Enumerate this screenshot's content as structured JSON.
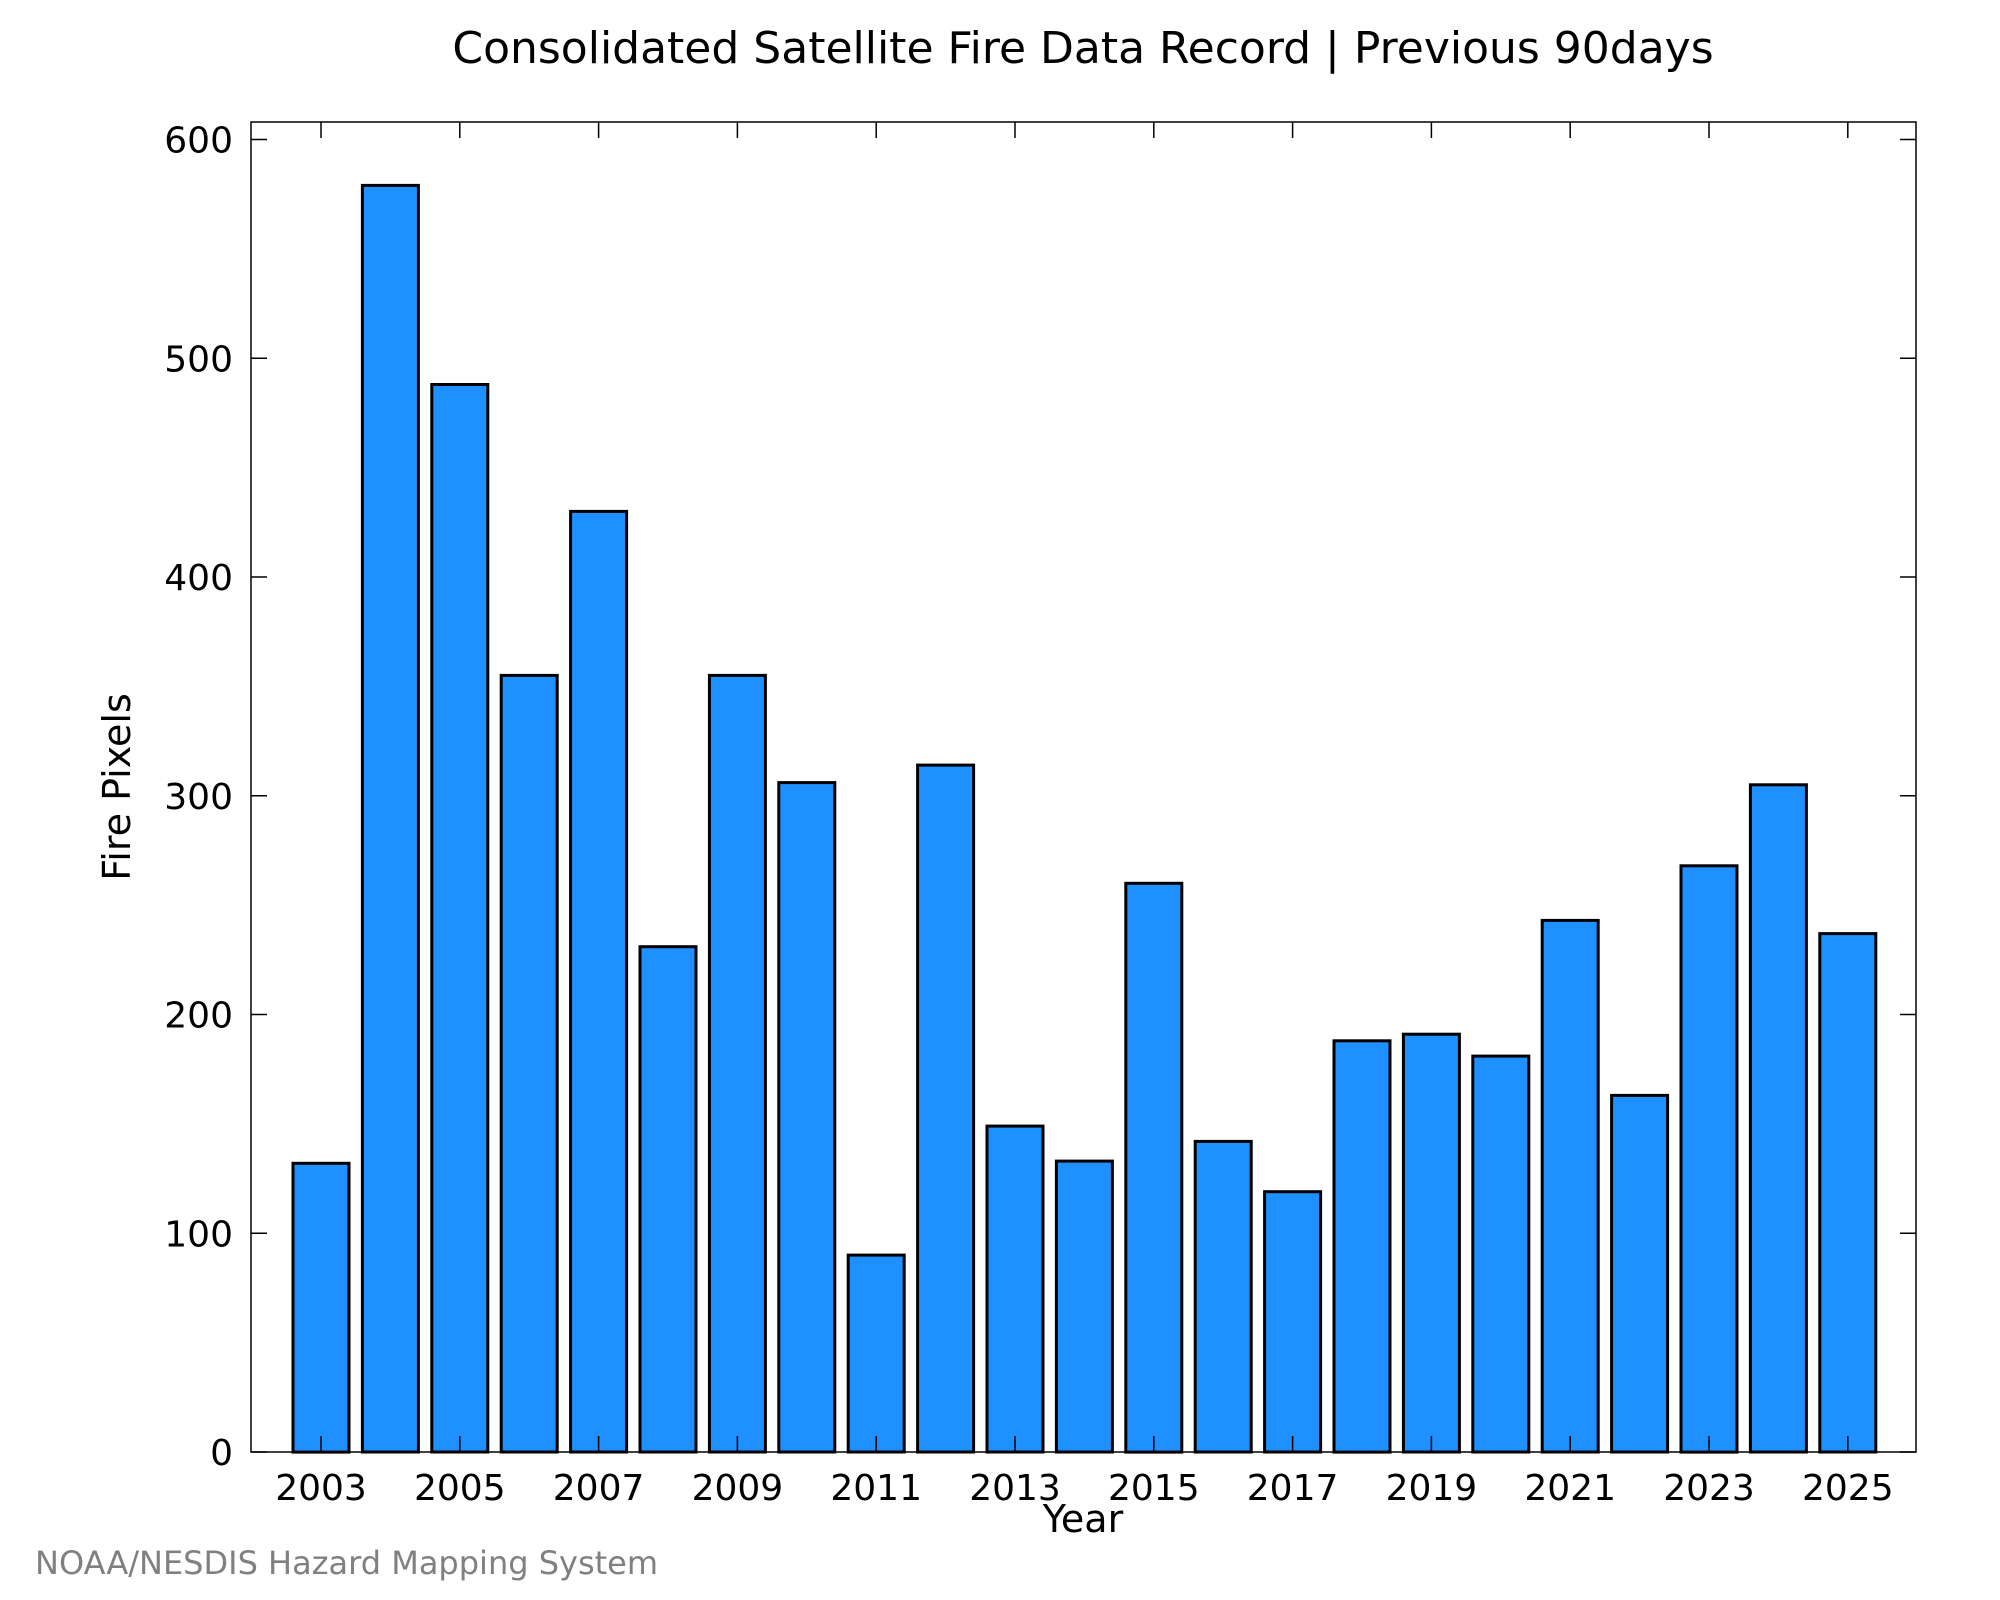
{
  "chart_data": {
    "type": "bar",
    "title": "Consolidated Satellite Fire Data Record | Previous 90days",
    "xlabel": "Year",
    "ylabel": "Fire Pixels",
    "categories": [
      "2003",
      "2004",
      "2005",
      "2006",
      "2007",
      "2008",
      "2009",
      "2010",
      "2011",
      "2012",
      "2013",
      "2014",
      "2015",
      "2016",
      "2017",
      "2018",
      "2019",
      "2020",
      "2021",
      "2022",
      "2023",
      "2024",
      "2025"
    ],
    "values": [
      132,
      579,
      488,
      355,
      430,
      231,
      355,
      306,
      90,
      314,
      149,
      133,
      260,
      142,
      119,
      188,
      191,
      181,
      243,
      163,
      268,
      305,
      237
    ],
    "x_tick_labels": [
      "2003",
      "2005",
      "2007",
      "2009",
      "2011",
      "2013",
      "2015",
      "2017",
      "2019",
      "2021",
      "2023",
      "2025"
    ],
    "y_ticks": [
      0,
      100,
      200,
      300,
      400,
      500,
      600
    ],
    "y_tick_labels": [
      "0",
      "100",
      "200",
      "300",
      "400",
      "500",
      "600"
    ],
    "ylim": [
      0,
      608
    ],
    "grid": false,
    "legend": "none",
    "bar_color": "#1e90ff",
    "edge_color": "#000000"
  },
  "footer": {
    "credit": "NOAA/NESDIS Hazard Mapping System"
  }
}
